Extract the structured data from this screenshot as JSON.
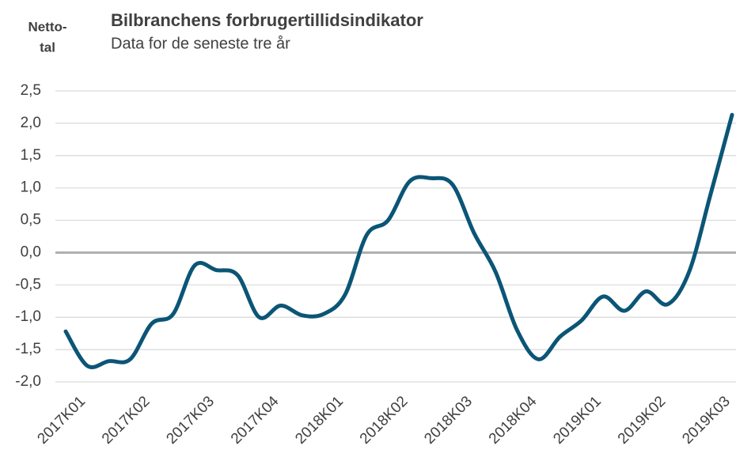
{
  "chart_data": {
    "type": "line",
    "title": "Bilbranchens forbrugertillidsindikator",
    "subtitle": "Data for de seneste tre år",
    "y_label": [
      "Netto-",
      "tal"
    ],
    "categories": [
      "2017K01",
      null,
      null,
      "2017K02",
      null,
      null,
      "2017K03",
      null,
      null,
      "2017K04",
      null,
      null,
      "2018K01",
      null,
      null,
      "2018K02",
      null,
      null,
      "2018K03",
      null,
      null,
      "2018K04",
      null,
      null,
      "2019K01",
      null,
      null,
      "2019K02",
      null,
      null,
      "2019K03",
      null
    ],
    "series": [
      {
        "name": "Bilbranchens forbrugertillidsindikator",
        "color": "#0b5576",
        "values": [
          -1.22,
          -1.75,
          -1.68,
          -1.65,
          -1.1,
          -0.95,
          -0.2,
          -0.27,
          -0.35,
          -1.0,
          -0.82,
          -0.97,
          -0.95,
          -0.65,
          0.27,
          0.5,
          1.1,
          1.15,
          1.05,
          0.3,
          -0.3,
          -1.2,
          -1.65,
          -1.3,
          -1.05,
          -0.68,
          -0.9,
          -0.6,
          -0.8,
          -0.3,
          0.9,
          2.13
        ]
      }
    ],
    "ylim": [
      -2.0,
      2.5
    ],
    "yticks": [
      {
        "value": -2.0,
        "label": "-2,0"
      },
      {
        "value": -1.5,
        "label": "-1,5"
      },
      {
        "value": -1.0,
        "label": "-1,0"
      },
      {
        "value": -0.5,
        "label": "-0,5"
      },
      {
        "value": 0.0,
        "label": "0,0"
      },
      {
        "value": 0.5,
        "label": "0,5"
      },
      {
        "value": 1.0,
        "label": "1,0"
      },
      {
        "value": 1.5,
        "label": "1,5"
      },
      {
        "value": 2.0,
        "label": "2,0"
      },
      {
        "value": 2.5,
        "label": "2,5"
      }
    ],
    "grid": true
  }
}
